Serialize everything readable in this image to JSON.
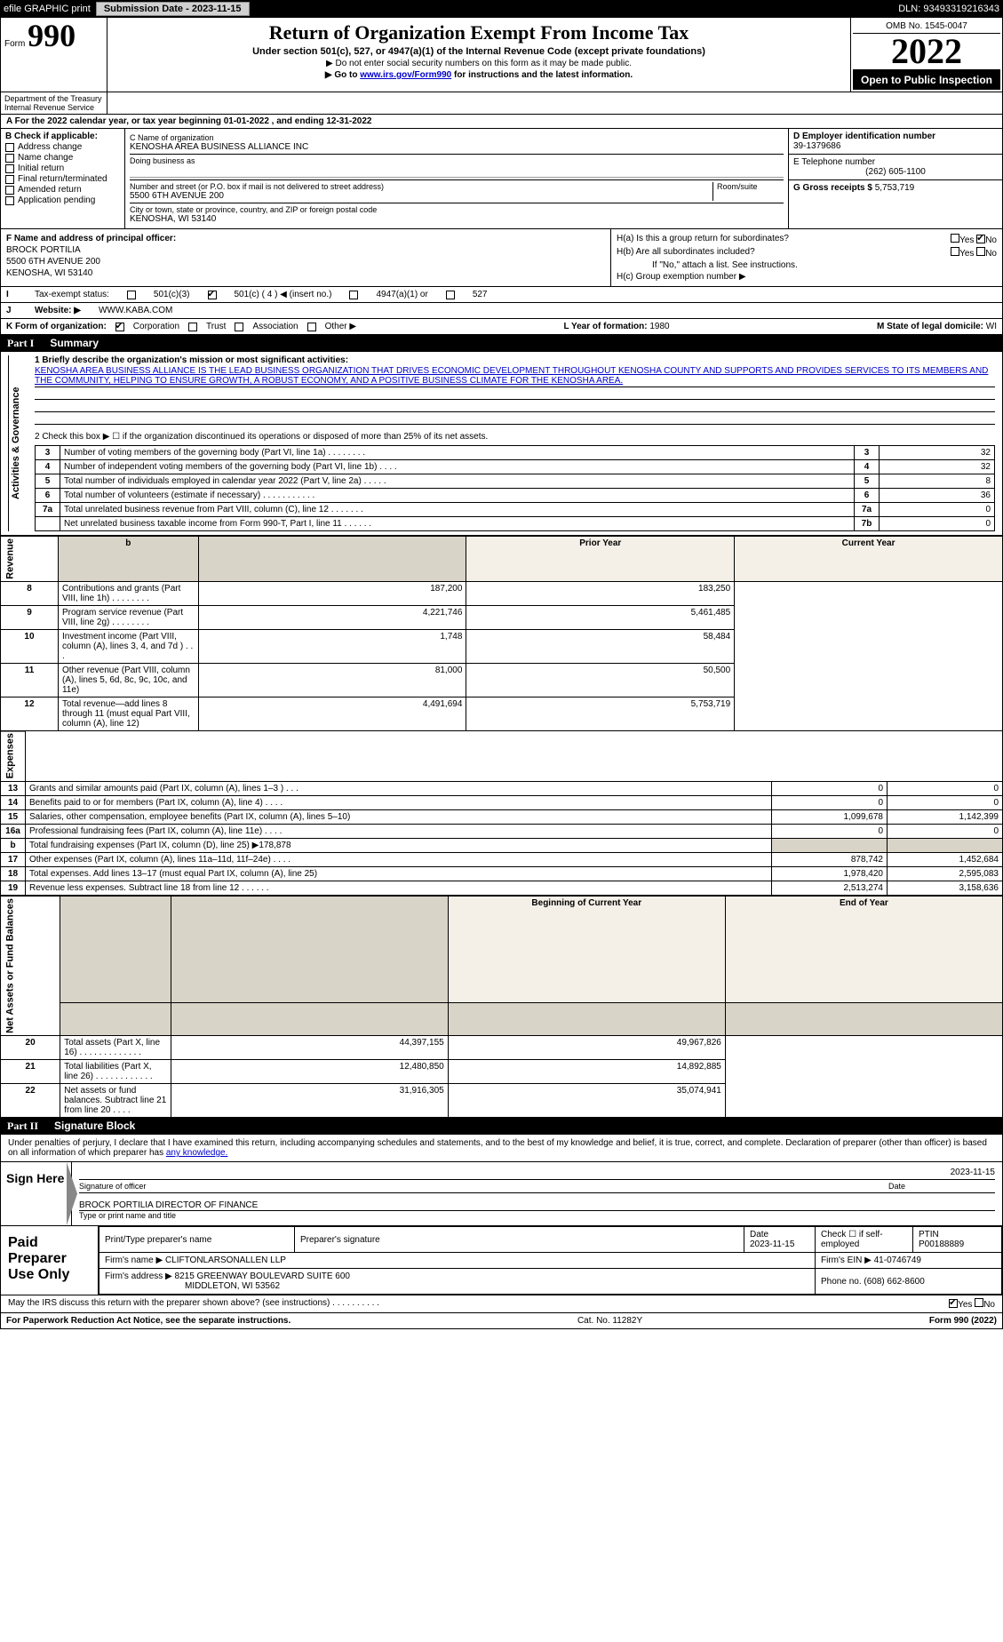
{
  "topbar": {
    "efile_label": "efile GRAPHIC print",
    "submission_label": "Submission Date - 2023-11-15",
    "dln_label": "DLN: 93493319216343"
  },
  "form": {
    "form_prefix": "Form",
    "form_number": "990",
    "title": "Return of Organization Exempt From Income Tax",
    "subtitle": "Under section 501(c), 527, or 4947(a)(1) of the Internal Revenue Code (except private foundations)",
    "ssn_note": "▶ Do not enter social security numbers on this form as it may be made public.",
    "goto_prefix": "▶ Go to ",
    "goto_link": "www.irs.gov/Form990",
    "goto_suffix": " for instructions and the latest information.",
    "dept": "Department of the Treasury\nInternal Revenue Service",
    "omb": "OMB No. 1545-0047",
    "year": "2022",
    "open_public": "Open to Public Inspection"
  },
  "A": {
    "text": "For the 2022 calendar year, or tax year beginning 01-01-2022    , and ending 12-31-2022"
  },
  "B": {
    "header": "B Check if applicable:",
    "opts": [
      "Address change",
      "Name change",
      "Initial return",
      "Final return/terminated",
      "Amended return",
      "Application pending"
    ]
  },
  "C": {
    "name_label": "C Name of organization",
    "name": "KENOSHA AREA BUSINESS ALLIANCE INC",
    "dba_label": "Doing business as",
    "street_label": "Number and street (or P.O. box if mail is not delivered to street address)",
    "room_label": "Room/suite",
    "street": "5500 6TH AVENUE 200",
    "city_label": "City or town, state or province, country, and ZIP or foreign postal code",
    "city": "KENOSHA, WI  53140"
  },
  "D": {
    "label": "D Employer identification number",
    "value": "39-1379686"
  },
  "E": {
    "label": "E Telephone number",
    "value": "(262) 605-1100"
  },
  "G": {
    "label": "G Gross receipts $",
    "value": "5,753,719"
  },
  "F": {
    "label": "F  Name and address of principal officer:",
    "name": "BROCK PORTILIA",
    "street": "5500 6TH AVENUE 200",
    "city": "KENOSHA, WI  53140"
  },
  "H": {
    "a_label": "H(a)  Is this a group return for subordinates?",
    "a_yes": "Yes",
    "a_no": "No",
    "b_label": "H(b)  Are all subordinates included?",
    "b_note": "If \"No,\" attach a list. See instructions.",
    "c_label": "H(c)  Group exemption number ▶"
  },
  "I": {
    "label": "Tax-exempt status:",
    "opts": [
      "501(c)(3)",
      "501(c) ( 4 ) ◀ (insert no.)",
      "4947(a)(1) or",
      "527"
    ]
  },
  "J": {
    "label": "Website: ▶",
    "value": "WWW.KABA.COM"
  },
  "K": {
    "label": "K Form of organization:",
    "opts": [
      "Corporation",
      "Trust",
      "Association",
      "Other ▶"
    ]
  },
  "L": {
    "label": "L Year of formation:",
    "value": "1980"
  },
  "M": {
    "label": "M State of legal domicile:",
    "value": "WI"
  },
  "part1": {
    "header_num": "Part I",
    "header_title": "Summary",
    "q1_label": "1  Briefly describe the organization's mission or most significant activities:",
    "mission": "KENOSHA AREA BUSINESS ALLIANCE IS THE LEAD BUSINESS ORGANIZATION THAT DRIVES ECONOMIC DEVELOPMENT THROUGHOUT KENOSHA COUNTY AND SUPPORTS AND PROVIDES SERVICES TO ITS MEMBERS AND THE COMMUNITY, HELPING TO ENSURE GROWTH, A ROBUST ECONOMY, AND A POSITIVE BUSINESS CLIMATE FOR THE KENOSHA AREA.",
    "q2": "2   Check this box ▶ ☐  if the organization discontinued its operations or disposed of more than 25% of its net assets.",
    "rows_gov": [
      {
        "n": "3",
        "t": "Number of voting members of the governing body (Part VI, line 1a)  .    .    .    .    .    .    .    .",
        "rn": "3",
        "v": "32"
      },
      {
        "n": "4",
        "t": "Number of independent voting members of the governing body (Part VI, line 1b)  .    .    .    .",
        "rn": "4",
        "v": "32"
      },
      {
        "n": "5",
        "t": "Total number of individuals employed in calendar year 2022 (Part V, line 2a)  .    .    .    .    .",
        "rn": "5",
        "v": "8"
      },
      {
        "n": "6",
        "t": "Total number of volunteers (estimate if necessary)    .    .    .    .    .    .    .    .    .    .    .",
        "rn": "6",
        "v": "36"
      },
      {
        "n": "7a",
        "t": "Total unrelated business revenue from Part VIII, column (C), line 12   .    .    .    .    .    .    .",
        "rn": "7a",
        "v": "0"
      },
      {
        "n": "",
        "t": "Net unrelated business taxable income from Form 990-T, Part I, line 11   .    .    .    .    .    .",
        "rn": "7b",
        "v": "0"
      }
    ],
    "py_label": "Prior Year",
    "cy_label": "Current Year",
    "rows_rev": [
      {
        "n": "8",
        "t": "Contributions and grants (Part VIII, line 1h)    .    .    .    .    .    .    .    .",
        "p": "187,200",
        "c": "183,250"
      },
      {
        "n": "9",
        "t": "Program service revenue (Part VIII, line 2g)   .    .    .    .    .    .    .    .",
        "p": "4,221,746",
        "c": "5,461,485"
      },
      {
        "n": "10",
        "t": "Investment income (Part VIII, column (A), lines 3, 4, and 7d )   .    .    .",
        "p": "1,748",
        "c": "58,484"
      },
      {
        "n": "11",
        "t": "Other revenue (Part VIII, column (A), lines 5, 6d, 8c, 9c, 10c, and 11e)",
        "p": "81,000",
        "c": "50,500"
      },
      {
        "n": "12",
        "t": "Total revenue—add lines 8 through 11 (must equal Part VIII, column (A), line 12)",
        "p": "4,491,694",
        "c": "5,753,719"
      }
    ],
    "rows_exp": [
      {
        "n": "13",
        "t": "Grants and similar amounts paid (Part IX, column (A), lines 1–3 )  .    .    .",
        "p": "0",
        "c": "0"
      },
      {
        "n": "14",
        "t": "Benefits paid to or for members (Part IX, column (A), line 4)  .    .    .    .",
        "p": "0",
        "c": "0"
      },
      {
        "n": "15",
        "t": "Salaries, other compensation, employee benefits (Part IX, column (A), lines 5–10)",
        "p": "1,099,678",
        "c": "1,142,399"
      },
      {
        "n": "16a",
        "t": "Professional fundraising fees (Part IX, column (A), line 11e)  .    .    .    .",
        "p": "0",
        "c": "0"
      },
      {
        "n": "b",
        "t": "Total fundraising expenses (Part IX, column (D), line 25) ▶178,878",
        "p": "",
        "c": "",
        "gray": true
      },
      {
        "n": "17",
        "t": "Other expenses (Part IX, column (A), lines 11a–11d, 11f–24e)  .    .    .    .",
        "p": "878,742",
        "c": "1,452,684"
      },
      {
        "n": "18",
        "t": "Total expenses. Add lines 13–17 (must equal Part IX, column (A), line 25)",
        "p": "1,978,420",
        "c": "2,595,083"
      },
      {
        "n": "19",
        "t": "Revenue less expenses. Subtract line 18 from line 12  .    .    .    .    .    .",
        "p": "2,513,274",
        "c": "3,158,636"
      }
    ],
    "boy_label": "Beginning of Current Year",
    "eoy_label": "End of Year",
    "rows_net": [
      {
        "n": "20",
        "t": "Total assets (Part X, line 16)  .    .    .    .    .    .    .    .    .    .    .    .    .",
        "p": "44,397,155",
        "c": "49,967,826"
      },
      {
        "n": "21",
        "t": "Total liabilities (Part X, line 26)  .    .    .    .    .    .    .    .    .    .    .    .",
        "p": "12,480,850",
        "c": "14,892,885"
      },
      {
        "n": "22",
        "t": "Net assets or fund balances. Subtract line 21 from line 20   .    .    .    .",
        "p": "31,916,305",
        "c": "35,074,941"
      }
    ],
    "side_gov": "Activities & Governance",
    "side_rev": "Revenue",
    "side_exp": "Expenses",
    "side_net": "Net Assets or Fund Balances"
  },
  "part2": {
    "header_num": "Part II",
    "header_title": "Signature Block",
    "intro": "Under penalties of perjury, I declare that I have examined this return, including accompanying schedules and statements, and to the best of my knowledge and belief, it is true, correct, and complete. Declaration of preparer (other than officer) is based on all information of which preparer has ",
    "intro_link": "any knowledge.",
    "sign_here": "Sign Here",
    "sig_officer": "Signature of officer",
    "sig_date_label": "Date",
    "sig_date": "2023-11-15",
    "typed_name": "BROCK PORTILIA  DIRECTOR OF FINANCE",
    "typed_label": "Type or print name and title",
    "paid_label": "Paid Preparer Use Only",
    "pp_name_label": "Print/Type preparer's name",
    "pp_sig_label": "Preparer's signature",
    "pp_date_label": "Date",
    "pp_date": "2023-11-15",
    "pp_check_label": "Check ☐ if self-employed",
    "ptin_label": "PTIN",
    "ptin": "P00188889",
    "firm_name_label": "Firm's name    ▶",
    "firm_name": "CLIFTONLARSONALLEN LLP",
    "firm_ein_label": "Firm's EIN ▶",
    "firm_ein": "41-0746749",
    "firm_addr_label": "Firm's address ▶",
    "firm_addr1": "8215 GREENWAY BOULEVARD SUITE 600",
    "firm_addr2": "MIDDLETON, WI  53562",
    "phone_label": "Phone no.",
    "phone": "(608) 662-8600",
    "discuss": "May the IRS discuss this return with the preparer shown above? (see instructions)   .    .    .    .    .    .    .    .    .    .",
    "yes": "Yes",
    "no": "No"
  },
  "footer": {
    "pra": "For Paperwork Reduction Act Notice, see the separate instructions.",
    "cat": "Cat. No. 11282Y",
    "form": "Form 990 (2022)"
  },
  "colors": {
    "black": "#000000",
    "link": "#0000cc",
    "gray_fill": "#d9d4c8",
    "header_bg": "#f4f0e8"
  }
}
